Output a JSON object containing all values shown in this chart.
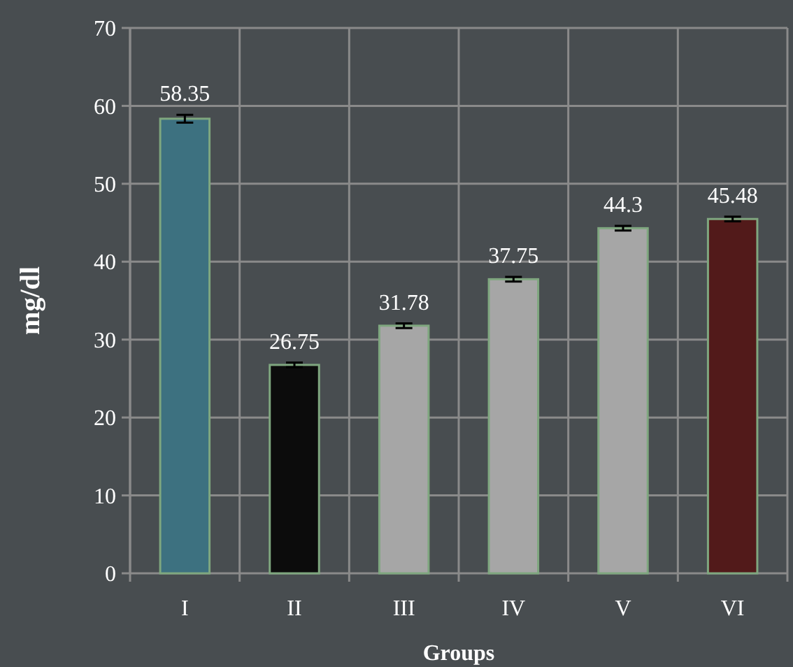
{
  "chart_data": {
    "type": "bar",
    "xlabel": "Groups",
    "ylabel": "mg/dl",
    "categories": [
      "I",
      "II",
      "III",
      "IV",
      "V",
      "VI"
    ],
    "values": [
      58.35,
      26.75,
      31.78,
      37.75,
      44.3,
      45.48
    ],
    "errors": [
      0.5,
      0.3,
      0.3,
      0.3,
      0.3,
      0.3
    ],
    "colors": [
      "#3d7180",
      "#0c0c0c",
      "#a6a6a6",
      "#a6a6a6",
      "#a6a6a6",
      "#521a1a"
    ],
    "ylim": [
      0,
      70
    ],
    "yticks": [
      0,
      10,
      20,
      30,
      40,
      50,
      60,
      70
    ],
    "grid": true,
    "data_labels": true
  }
}
